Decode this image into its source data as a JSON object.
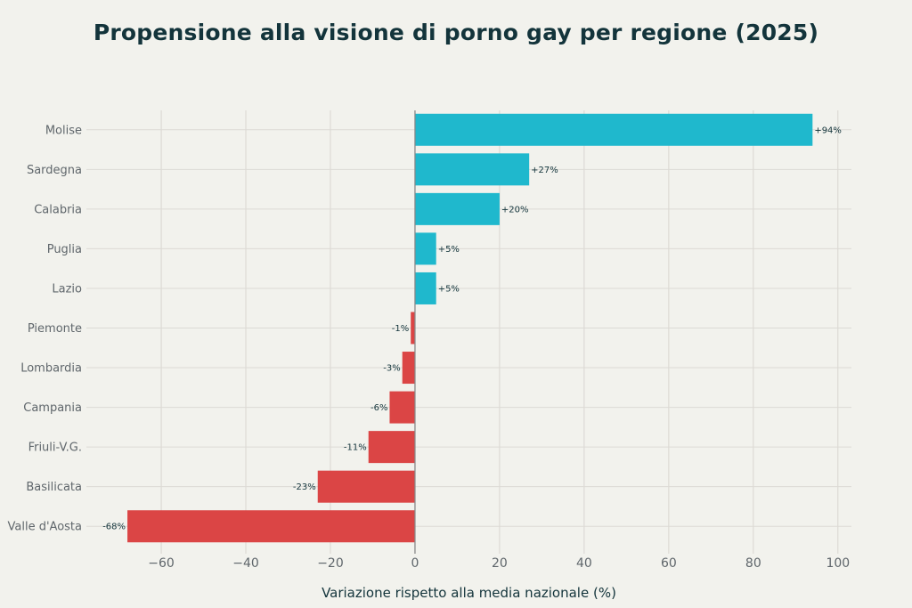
{
  "chart_data": {
    "type": "bar",
    "orientation": "horizontal",
    "title": "Propensione alla visione di porno gay per regione (2025)",
    "xlabel": "Variazione rispetto alla media nazionale (%)",
    "ylabel": "",
    "categories": [
      "Molise",
      "Sardegna",
      "Calabria",
      "Puglia",
      "Lazio",
      "Piemonte",
      "Lombardia",
      "Campania",
      "Friuli-V.G.",
      "Basilicata",
      "Valle d'Aosta"
    ],
    "values": [
      94,
      27,
      20,
      5,
      5,
      -1,
      -3,
      -6,
      -11,
      -23,
      -68
    ],
    "data_labels": [
      "+94%",
      "+27%",
      "+20%",
      "+5%",
      "+5%",
      "-1%",
      "-3%",
      "-6%",
      "-11%",
      "-23%",
      "-68%"
    ],
    "xlim": [
      -77.7,
      103.2
    ],
    "xticks": [
      -60,
      -40,
      -20,
      0,
      20,
      40,
      60,
      80,
      100
    ],
    "xtick_labels": [
      "−60",
      "−40",
      "−20",
      "0",
      "20",
      "40",
      "60",
      "80",
      "100"
    ],
    "grid": true,
    "legend": "none",
    "colors": {
      "positive": "#1fb8cd",
      "negative": "#db4545",
      "background": "#f2f2ed",
      "zero_line": "#888888"
    }
  }
}
